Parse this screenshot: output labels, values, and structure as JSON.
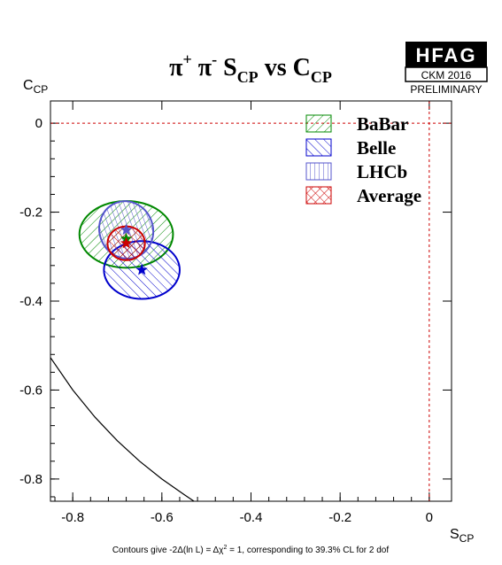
{
  "chart_data": {
    "type": "scatter",
    "title": {
      "main": "π",
      "sup1": "+",
      "pi2": "π",
      "sup2": "-",
      "s": "S",
      "s_sub": "CP",
      "vs": "vs",
      "c": "C",
      "c_sub": "CP"
    },
    "xlabel": {
      "main": "S",
      "sub": "CP"
    },
    "ylabel": {
      "main": "C",
      "sub": "CP"
    },
    "xlim": [
      -0.85,
      0.05
    ],
    "ylim": [
      -0.85,
      0.05
    ],
    "xticks": [
      -0.8,
      -0.6,
      -0.4,
      -0.2,
      0
    ],
    "xtick_labels": [
      "-0.8",
      "-0.6",
      "-0.4",
      "-0.2",
      "0"
    ],
    "yticks": [
      0,
      -0.2,
      -0.4,
      -0.6,
      -0.8
    ],
    "ytick_labels": [
      "0",
      "-0.2",
      "-0.4",
      "-0.6",
      "-0.8"
    ],
    "zero_lines": {
      "color": "#cc0000",
      "style": "dashed"
    },
    "boundary_curve": {
      "color": "#000000",
      "points": [
        [
          -0.85,
          -0.527
        ],
        [
          -0.8,
          -0.6
        ],
        [
          -0.75,
          -0.661
        ],
        [
          -0.7,
          -0.714
        ],
        [
          -0.65,
          -0.76
        ],
        [
          -0.6,
          -0.8
        ],
        [
          -0.55,
          -0.835
        ],
        [
          -0.528,
          -0.85
        ]
      ]
    },
    "series": [
      {
        "name": "BaBar",
        "color": "#008800",
        "hatch": "diag-down",
        "center": [
          -0.68,
          -0.25
        ],
        "rx": 0.105,
        "ry": 0.075,
        "marker": "star",
        "marker_at": [
          -0.68,
          -0.26
        ]
      },
      {
        "name": "Belle",
        "color": "#0000cc",
        "hatch": "diag-up",
        "center": [
          -0.645,
          -0.33
        ],
        "rx": 0.085,
        "ry": 0.065,
        "marker": "star",
        "marker_at": [
          -0.645,
          -0.33
        ]
      },
      {
        "name": "LHCb",
        "color": "#5555cc",
        "hatch": "vertical",
        "center": [
          -0.68,
          -0.24
        ],
        "rx": 0.06,
        "ry": 0.065,
        "angle": -20,
        "marker": "star",
        "marker_at": [
          -0.68,
          -0.24
        ]
      },
      {
        "name": "Average",
        "color": "#cc0000",
        "hatch": "cross",
        "center": [
          -0.68,
          -0.27
        ],
        "rx": 0.042,
        "ry": 0.038,
        "marker": "star",
        "marker_at": [
          -0.68,
          -0.27
        ]
      }
    ],
    "legend": {
      "placement": "top-right"
    },
    "grid": false
  },
  "logo": {
    "text": "HFAG",
    "line2": "CKM 2016",
    "line3": "PRELIMINARY"
  },
  "footnote": {
    "prefix": "Contours give -2Δ(ln L) = Δχ",
    "sup": "2",
    "suffix": " = 1, corresponding to 39.3% CL for 2 dof"
  }
}
